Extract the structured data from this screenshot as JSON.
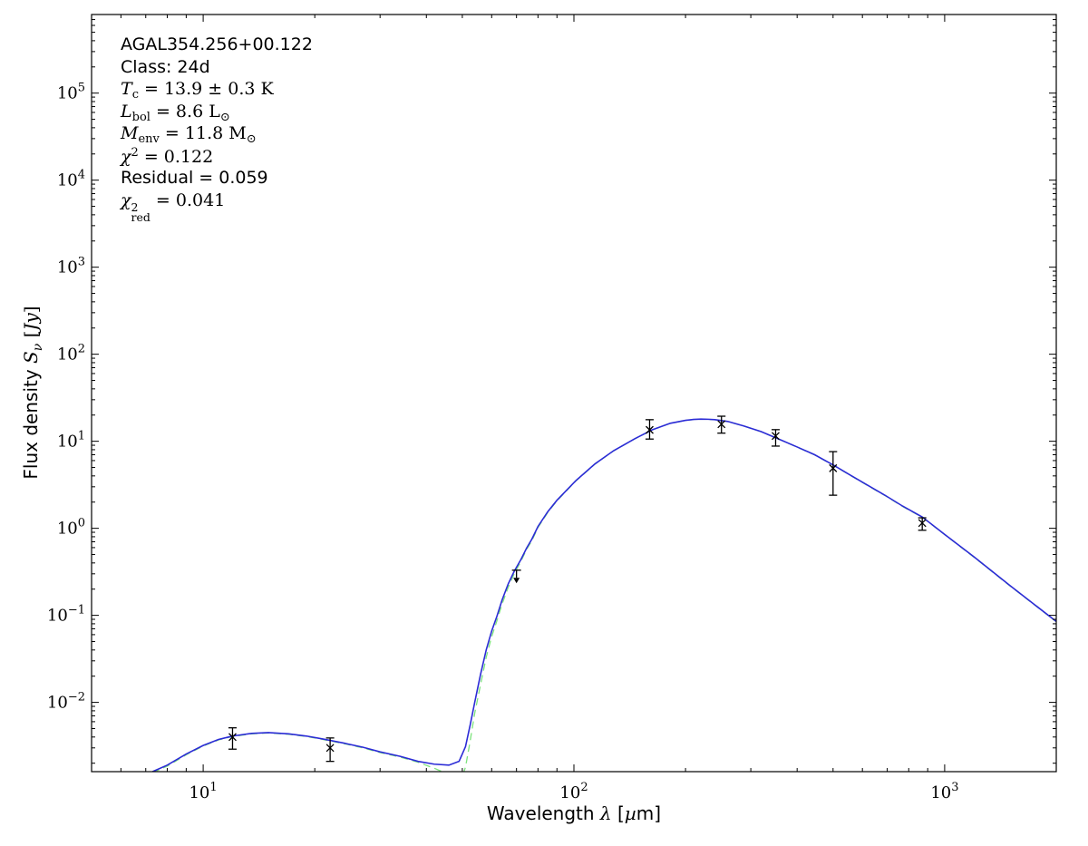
{
  "figure": {
    "background": "#ffffff",
    "annotation": {
      "lines": [
        {
          "name": "source-name",
          "parts": [
            {
              "t": "AGAL354.256+00.122",
              "style": "sans"
            }
          ]
        },
        {
          "name": "class-label",
          "parts": [
            {
              "t": "Class: 24d",
              "style": "sans"
            }
          ]
        },
        {
          "name": "dust-temperature",
          "parts": [
            {
              "t": "T",
              "style": "it"
            },
            {
              "t": "c",
              "style": "sub"
            },
            {
              "t": " = 13.9 ± 0.3 K",
              "style": "rm"
            }
          ]
        },
        {
          "name": "bolometric-luminosity",
          "parts": [
            {
              "t": "L",
              "style": "it"
            },
            {
              "t": "bol",
              "style": "sub"
            },
            {
              "t": " = 8.6 L",
              "style": "rm"
            },
            {
              "t": "⊙",
              "style": "sub"
            }
          ]
        },
        {
          "name": "envelope-mass",
          "parts": [
            {
              "t": "M",
              "style": "it"
            },
            {
              "t": "env",
              "style": "sub"
            },
            {
              "t": " = 11.8 M",
              "style": "rm"
            },
            {
              "t": "⊙",
              "style": "sub"
            }
          ]
        },
        {
          "name": "chi-squared",
          "parts": [
            {
              "t": "χ",
              "style": "it"
            },
            {
              "t": "2",
              "style": "sup"
            },
            {
              "t": " = 0.122",
              "style": "rm"
            }
          ]
        },
        {
          "name": "residual",
          "parts": [
            {
              "t": "Residual = 0.059",
              "style": "sans"
            }
          ]
        },
        {
          "name": "chi-squared-reduced",
          "parts": [
            {
              "t": "χ",
              "style": "it"
            },
            {
              "t": "2|red",
              "style": "stack"
            },
            {
              "t": " = 0.041",
              "style": "rm"
            }
          ]
        }
      ]
    }
  },
  "chart_data": {
    "type": "line",
    "title": "",
    "xlabel": "Wavelength λ [µm]",
    "ylabel": "Flux density Sν [Jy]",
    "xlabel_parts": [
      {
        "t": "Wavelength ",
        "style": "sans"
      },
      {
        "t": "λ",
        "style": "it"
      },
      {
        "t": " [",
        "style": "sans"
      },
      {
        "t": "µ",
        "style": "it"
      },
      {
        "t": "m]",
        "style": "sans"
      }
    ],
    "ylabel_parts": [
      {
        "t": "Flux density ",
        "style": "sans"
      },
      {
        "t": "S",
        "style": "it"
      },
      {
        "t": "ν",
        "style": "isub"
      },
      {
        "t": " [",
        "style": "rm"
      },
      {
        "t": "Jy",
        "style": "it"
      },
      {
        "t": "]",
        "style": "rm"
      }
    ],
    "grid": false,
    "legend": null,
    "x_axis": {
      "scale": "log",
      "min": 5,
      "max": 2000,
      "unit": "µm",
      "major_tick_exponents": [
        1,
        2,
        3
      ]
    },
    "y_axis": {
      "scale": "log",
      "min": 0.0016,
      "max": 800000,
      "unit": "Jy",
      "major_tick_exponents": [
        5,
        4,
        3,
        2,
        1,
        0,
        -1,
        -2
      ]
    },
    "colors": {
      "model_total": "#2b2bd6",
      "components": "#7de37d",
      "data": "#000000",
      "axis": "#000000"
    },
    "series": [
      {
        "name": "hot-component",
        "line_style": "dashed",
        "color_key": "components",
        "points": [
          [
            7.3,
            0.00155
          ],
          [
            8,
            0.00185
          ],
          [
            9,
            0.0025
          ],
          [
            10,
            0.00315
          ],
          [
            11,
            0.0037
          ],
          [
            12,
            0.00405
          ],
          [
            13.5,
            0.00435
          ],
          [
            15,
            0.00445
          ],
          [
            17,
            0.0043
          ],
          [
            19,
            0.00405
          ],
          [
            21,
            0.00375
          ],
          [
            24,
            0.00335
          ],
          [
            27,
            0.003
          ],
          [
            30,
            0.00265
          ],
          [
            34,
            0.00235
          ],
          [
            38,
            0.00205
          ],
          [
            42,
            0.00175
          ],
          [
            46,
            0.00148
          ],
          [
            49,
            0.00128
          ],
          [
            52,
            0.00105
          ],
          [
            55,
            0.0008
          ]
        ]
      },
      {
        "name": "cold-component",
        "line_style": "dashed",
        "color_key": "components",
        "points": [
          [
            49,
            0.0011
          ],
          [
            51,
            0.0018
          ],
          [
            52.5,
            0.0036
          ],
          [
            54,
            0.0075
          ],
          [
            56,
            0.016
          ],
          [
            58,
            0.033
          ],
          [
            60,
            0.057
          ],
          [
            62,
            0.087
          ],
          [
            64,
            0.135
          ],
          [
            66.5,
            0.21
          ],
          [
            69,
            0.3
          ],
          [
            72,
            0.42
          ],
          [
            74.5,
            0.57
          ],
          [
            77,
            0.72
          ],
          [
            80,
            1.02
          ],
          [
            85,
            1.52
          ],
          [
            90,
            2.07
          ],
          [
            101,
            3.47
          ],
          [
            114,
            5.47
          ],
          [
            128,
            7.77
          ],
          [
            146,
            10.67
          ],
          [
            163,
            13.57
          ],
          [
            182,
            16.07
          ],
          [
            200,
            17.37
          ],
          [
            210,
            17.77
          ],
          [
            220,
            17.97
          ],
          [
            230,
            17.87
          ],
          [
            240,
            17.67
          ],
          [
            260,
            16.87
          ],
          [
            287,
            14.97
          ],
          [
            320,
            12.87
          ],
          [
            357,
            10.57
          ],
          [
            400,
            8.57
          ],
          [
            446,
            6.97
          ],
          [
            500,
            5.32
          ],
          [
            553,
            4.12
          ],
          [
            618,
            3.12
          ],
          [
            690,
            2.38
          ],
          [
            770,
            1.78
          ],
          [
            870,
            1.34
          ],
          [
            1000,
            0.845
          ],
          [
            1200,
            0.465
          ],
          [
            1500,
            0.218
          ],
          [
            2000,
            0.0845
          ]
        ]
      },
      {
        "name": "model-total",
        "line_style": "solid",
        "color_key": "model_total",
        "points": [
          [
            7.3,
            0.0016
          ],
          [
            8,
            0.0019
          ],
          [
            9,
            0.00255
          ],
          [
            10,
            0.0032
          ],
          [
            11,
            0.00375
          ],
          [
            12,
            0.0041
          ],
          [
            13.5,
            0.0044
          ],
          [
            15,
            0.0045
          ],
          [
            17,
            0.00435
          ],
          [
            19,
            0.0041
          ],
          [
            21,
            0.0038
          ],
          [
            24,
            0.0034
          ],
          [
            27,
            0.00305
          ],
          [
            30,
            0.0027
          ],
          [
            34,
            0.0024
          ],
          [
            38,
            0.0021
          ],
          [
            42,
            0.00195
          ],
          [
            46,
            0.0019
          ],
          [
            49,
            0.0021
          ],
          [
            51,
            0.0031
          ],
          [
            52.5,
            0.0055
          ],
          [
            54,
            0.01
          ],
          [
            56,
            0.021
          ],
          [
            58,
            0.04
          ],
          [
            60,
            0.066
          ],
          [
            62,
            0.098
          ],
          [
            64,
            0.15
          ],
          [
            66.5,
            0.23
          ],
          [
            69,
            0.32
          ],
          [
            72,
            0.44
          ],
          [
            74.5,
            0.59
          ],
          [
            77,
            0.75
          ],
          [
            80,
            1.05
          ],
          [
            85,
            1.55
          ],
          [
            90,
            2.1
          ],
          [
            101,
            3.5
          ],
          [
            114,
            5.5
          ],
          [
            128,
            7.8
          ],
          [
            146,
            10.7
          ],
          [
            163,
            13.6
          ],
          [
            182,
            16.1
          ],
          [
            200,
            17.4
          ],
          [
            210,
            17.8
          ],
          [
            220,
            18
          ],
          [
            230,
            17.9
          ],
          [
            240,
            17.7
          ],
          [
            260,
            16.9
          ],
          [
            287,
            15
          ],
          [
            320,
            12.9
          ],
          [
            357,
            10.6
          ],
          [
            400,
            8.6
          ],
          [
            446,
            7
          ],
          [
            500,
            5.35
          ],
          [
            553,
            4.15
          ],
          [
            618,
            3.15
          ],
          [
            690,
            2.4
          ],
          [
            770,
            1.8
          ],
          [
            870,
            1.35
          ],
          [
            1000,
            0.85
          ],
          [
            1200,
            0.47
          ],
          [
            1500,
            0.22
          ],
          [
            2000,
            0.085
          ]
        ]
      }
    ],
    "photometry_points": [
      {
        "lambda_um": 12,
        "flux_jy": 0.004,
        "err_plus_jy": 0.0011,
        "err_minus_jy": 0.0011
      },
      {
        "lambda_um": 22,
        "flux_jy": 0.003,
        "err_plus_jy": 0.0009,
        "err_minus_jy": 0.0009
      },
      {
        "lambda_um": 160,
        "flux_jy": 13.5,
        "err_plus_jy": 4.2,
        "err_minus_jy": 2.9
      },
      {
        "lambda_um": 250,
        "flux_jy": 15.7,
        "err_plus_jy": 3.7,
        "err_minus_jy": 3.3
      },
      {
        "lambda_um": 350,
        "flux_jy": 11.5,
        "err_plus_jy": 2.1,
        "err_minus_jy": 2.7
      },
      {
        "lambda_um": 500,
        "flux_jy": 4.9,
        "err_plus_jy": 2.7,
        "err_minus_jy": 2.5
      },
      {
        "lambda_um": 870,
        "flux_jy": 1.15,
        "err_plus_jy": 0.17,
        "err_minus_jy": 0.2
      }
    ],
    "upper_limits": [
      {
        "lambda_um": 70,
        "flux_jy": 0.33,
        "arrow_to_jy": 0.27
      }
    ]
  }
}
